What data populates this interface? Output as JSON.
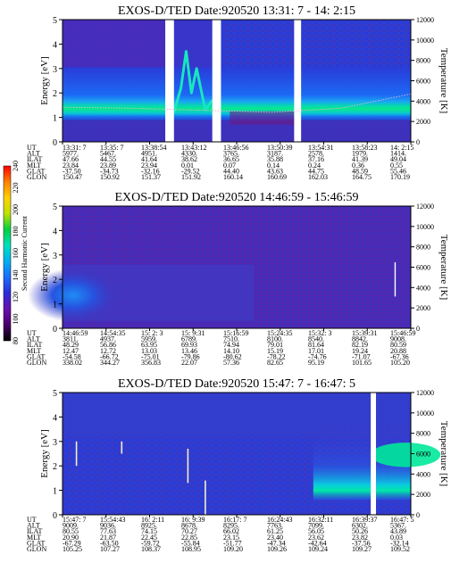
{
  "chart_data": [
    {
      "type": "heatmap",
      "title": "EXOS-D/TED    Date:920520  13:31: 7 - 14: 2:15",
      "ylabel": "Energy [eV]",
      "y2label": "Temperature [K]",
      "ylim": [
        0,
        5
      ],
      "y_ticks": [
        "0",
        "1",
        "2",
        "3",
        "4",
        "5"
      ],
      "y2lim": [
        0,
        12000
      ],
      "y2_ticks": [
        "0",
        "2000",
        "4000",
        "6000",
        "8000",
        "10000",
        "12000"
      ],
      "x_ticks": [
        "13:31: 7",
        "13:35: 7",
        "13:38:54",
        "13:43:12",
        "13:46:56",
        "13:50:39",
        "13:54:31",
        "13:58:23",
        "14: 2:15"
      ],
      "ephemeris": [
        {
          "label": "UT",
          "values": [
            "13:31: 7",
            "13:35: 7",
            "13:38:54",
            "13:43:12",
            "13:46:56",
            "13:50:39",
            "13:54:31",
            "13:58:23",
            "14: 2:15"
          ]
        },
        {
          "label": "ALT",
          "values": [
            "5977.",
            "5467.",
            "4951.",
            "4330.",
            "3765.",
            "3187.",
            "2578.",
            "1979.",
            "1414."
          ]
        },
        {
          "label": "ILAT",
          "values": [
            "47.66",
            "44.55",
            "41.64",
            "38.62",
            "36.65",
            "35.88",
            "37.16",
            "41.39",
            "49.04"
          ]
        },
        {
          "label": "MLT",
          "values": [
            "23.84",
            "23.89",
            "23.94",
            "0.01",
            "0.07",
            "0.14",
            "0.24",
            "0.36",
            "0.55"
          ]
        },
        {
          "label": "GLAT",
          "values": [
            "-37.50",
            "-34.73",
            "-32.16",
            "-29.52",
            "44.40",
            "43.63",
            "44.75",
            "48.59",
            "55.46"
          ]
        },
        {
          "label": "GLON",
          "values": [
            "150.47",
            "150.92",
            "151.37",
            "151.92",
            "160.14",
            "160.69",
            "162.03",
            "164.75",
            "170.19"
          ]
        }
      ],
      "data_gaps": [
        [
          0.295,
          0.32
        ],
        [
          0.43,
          0.455
        ],
        [
          0.665,
          0.685
        ]
      ],
      "temperature_profile": {
        "x_frac": [
          0.0,
          0.2,
          0.4,
          0.6,
          0.8,
          1.0
        ],
        "temperature_K": [
          3400,
          3300,
          3100,
          2900,
          3300,
          4700
        ]
      }
    },
    {
      "type": "heatmap",
      "title": "EXOS-D/TED    Date:920520  14:46:59 - 15:46:59",
      "ylabel": "Energy [eV]",
      "y2label": "Temperature [K]",
      "ylim": [
        0,
        5
      ],
      "y_ticks": [
        "0",
        "1",
        "2",
        "3",
        "4",
        "5"
      ],
      "y2lim": [
        0,
        12000
      ],
      "y2_ticks": [
        "0",
        "2000",
        "4000",
        "6000",
        "8000",
        "10000",
        "12000"
      ],
      "x_ticks": [
        "14:46:59",
        "14:54:35",
        "15: 2: 3",
        "15: 9:31",
        "15:16:59",
        "15:24:35",
        "15:32: 3",
        "15:39:31",
        "15:46:59"
      ],
      "ephemeris": [
        {
          "label": "UT",
          "values": [
            "14:46:59",
            "14:54:35",
            "15: 2: 3",
            "15: 9:31",
            "15:16:59",
            "15:24:35",
            "15:32: 3",
            "15:39:31",
            "15:46:59"
          ]
        },
        {
          "label": "ALT",
          "values": [
            "3811.",
            "4937.",
            "5959.",
            "6789.",
            "7510.",
            "8100.",
            "8540.",
            "8842.",
            "9008."
          ]
        },
        {
          "label": "ILAT",
          "values": [
            "48.29",
            "56.86",
            "63.95",
            "69.93",
            "74.94",
            "79.01",
            "81.64",
            "82.19",
            "80.59"
          ]
        },
        {
          "label": "MLT",
          "values": [
            "12.47",
            "12.72",
            "13.03",
            "13.46",
            "14.10",
            "15.19",
            "17.01",
            "19.24",
            "20.88"
          ]
        },
        {
          "label": "GLAT",
          "values": [
            "-54.58",
            "-66.72",
            "-75.01",
            "-79.86",
            "-80.62",
            "-78.22",
            "-74.76",
            "-71.07",
            "-67.36"
          ]
        },
        {
          "label": "GLON",
          "values": [
            "338.02",
            "344.27",
            "356.83",
            "22.07",
            "57.36",
            "82.65",
            "95.19",
            "101.65",
            "105.20"
          ]
        }
      ]
    },
    {
      "type": "heatmap",
      "title": "EXOS-D/TED    Date:920520  15:47: 7 - 16:47: 5",
      "ylabel": "Energy [eV]",
      "y2label": "Temperature [K]",
      "ylim": [
        0,
        5
      ],
      "y_ticks": [
        "0",
        "1",
        "2",
        "3",
        "4",
        "5"
      ],
      "y2lim": [
        0,
        12000
      ],
      "y2_ticks": [
        "0",
        "2000",
        "4000",
        "6000",
        "8000",
        "10000",
        "12000"
      ],
      "x_ticks": [
        "15:47: 7",
        "15:54:43",
        "16: 2:11",
        "16: 9:39",
        "16:17: 7",
        "16:24:43",
        "16:32:11",
        "16:39:37",
        "16:47: 5"
      ],
      "ephemeris": [
        {
          "label": "UT",
          "values": [
            "15:47: 7",
            "15:54:43",
            "16: 2:11",
            "16: 9:39",
            "16:17: 7",
            "16:24:43",
            "16:32:11",
            "16:39:37",
            "16:47: 5"
          ]
        },
        {
          "label": "ALT",
          "values": [
            "9009.",
            "9036.",
            "8925.",
            "8678.",
            "8295.",
            "7763.",
            "7099.",
            "6302.",
            "5367."
          ]
        },
        {
          "label": "ILAT",
          "values": [
            "80.55",
            "77.63",
            "74.15",
            "70.27",
            "66.02",
            "61.25",
            "56.05",
            "50.26",
            "43.89"
          ]
        },
        {
          "label": "MLT",
          "values": [
            "20.90",
            "21.87",
            "22.45",
            "22.85",
            "23.15",
            "23.40",
            "23.62",
            "23.82",
            "0.03"
          ]
        },
        {
          "label": "GLAT",
          "values": [
            "-67.29",
            "-63.50",
            "-59.72",
            "-55.84",
            "-51.77",
            "-47.34",
            "-42.64",
            "-37.56",
            "-32.14"
          ]
        },
        {
          "label": "GLON",
          "values": [
            "105.25",
            "107.27",
            "108.37",
            "108.95",
            "109.20",
            "109.26",
            "109.24",
            "109.27",
            "109.52"
          ]
        }
      ],
      "data_gaps": [
        [
          0.885,
          0.9
        ]
      ]
    }
  ],
  "colorbar": {
    "label": "Second Harmonic Current",
    "ticks": [
      "80",
      "100",
      "120",
      "140",
      "160",
      "180",
      "200",
      "220",
      "240"
    ],
    "range": [
      80,
      240
    ],
    "colors": [
      "#000000",
      "#4a006a",
      "#6a0fae",
      "#2a2cd8",
      "#1e6cff",
      "#00b0f0",
      "#00e0c0",
      "#00d040",
      "#c0e000",
      "#ffd000",
      "#ff8000",
      "#ff0000"
    ]
  }
}
